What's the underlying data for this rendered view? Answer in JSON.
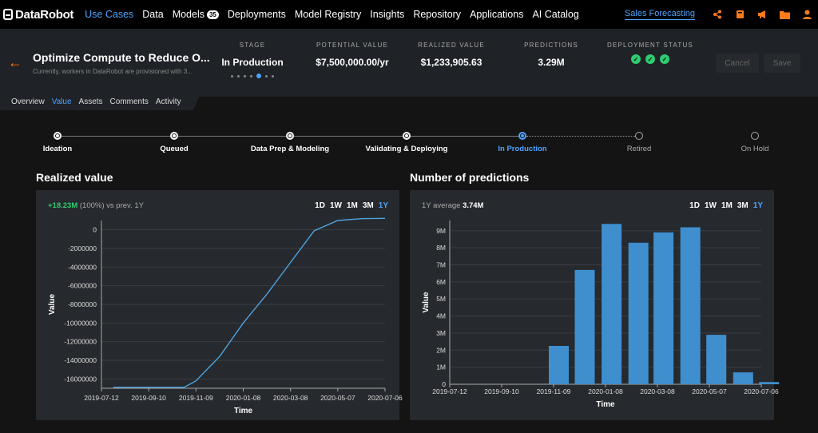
{
  "topbar": {
    "logo": "DataRobot",
    "nav": [
      "Use Cases",
      "Data",
      "Models",
      "Deployments",
      "Model Registry",
      "Insights",
      "Repository",
      "Applications",
      "AI Catalog"
    ],
    "models_badge": "35",
    "project": "Sales Forecasting",
    "icons": [
      "share-icon",
      "book-icon",
      "megaphone-icon",
      "folder-icon",
      "user-icon"
    ]
  },
  "header": {
    "title": "Optimize Compute to Reduce O...",
    "description": "Currently, workers in DataRobot are provisioned with 3...",
    "stage_label": "STAGE",
    "stage_value": "In Production",
    "potential_label": "POTENTIAL VALUE",
    "potential_value": "$7,500,000.00/yr",
    "realized_label": "REALIZED VALUE",
    "realized_value": "$1,233,905.63",
    "predictions_label": "PREDICTIONS",
    "predictions_value": "3.29M",
    "status_label": "DEPLOYMENT STATUS",
    "cancel": "Cancel",
    "save": "Save"
  },
  "tabs": [
    "Overview",
    "Value",
    "Assets",
    "Comments",
    "Activity"
  ],
  "stages": [
    "Ideation",
    "Queued",
    "Data Prep & Modeling",
    "Validating & Deploying",
    "In Production",
    "Retired",
    "On Hold"
  ],
  "realized_chart": {
    "title": "Realized value",
    "delta": "+18.23M",
    "delta_pct": "(100%)",
    "delta_suffix": "vs prev. 1Y",
    "ranges": [
      "1D",
      "1W",
      "1M",
      "3M",
      "1Y"
    ],
    "active_range": "1Y"
  },
  "predictions_chart": {
    "title": "Number of predictions",
    "avg_label": "1Y average",
    "avg_value": "3.74M",
    "ranges": [
      "1D",
      "1W",
      "1M",
      "3M",
      "1Y"
    ],
    "active_range": "1Y"
  },
  "chart_data": [
    {
      "type": "line",
      "xlabel": "Time",
      "ylabel": "Value",
      "xticks": [
        "2019-07-12",
        "2019-09-10",
        "2019-11-09",
        "2020-01-08",
        "2020-03-08",
        "2020-05-07",
        "2020-07-06"
      ],
      "yticks": [
        "0",
        "-2000000",
        "-4000000",
        "-6000000",
        "-8000000",
        "-10000000",
        "-12000000",
        "-14000000",
        "-16000000"
      ],
      "ylim": [
        -17000000,
        1000000
      ],
      "xlim": [
        "2019-07-12",
        "2020-07-06"
      ],
      "x": [
        "2019-07-27",
        "2019-09-10",
        "2019-10-25",
        "2019-11-09",
        "2019-12-09",
        "2020-01-08",
        "2020-02-07",
        "2020-03-08",
        "2020-04-07",
        "2020-05-07",
        "2020-06-06",
        "2020-07-06"
      ],
      "y": [
        -16900000,
        -16900000,
        -16900000,
        -16200000,
        -13600000,
        -10000000,
        -6900000,
        -3500000,
        -100000,
        1000000,
        1200000,
        1230000
      ]
    },
    {
      "type": "bar",
      "xlabel": "Time",
      "ylabel": "Value",
      "xticks": [
        "2019-07-12",
        "2019-09-10",
        "2019-11-09",
        "2020-01-08",
        "2020-03-08",
        "2020-05-07",
        "2020-07-06"
      ],
      "yticks": [
        "0",
        "1M",
        "2M",
        "3M",
        "4M",
        "5M",
        "6M",
        "7M",
        "8M",
        "9M"
      ],
      "ylim": [
        0,
        9600000
      ],
      "xlim": [
        "2019-07-12",
        "2020-07-06"
      ],
      "categories": [
        "2019-11",
        "2019-12",
        "2020-01",
        "2020-02",
        "2020-03",
        "2020-04",
        "2020-05",
        "2020-06",
        "2020-07"
      ],
      "values": [
        2250000,
        6700000,
        9400000,
        8300000,
        8900000,
        9200000,
        2900000,
        700000,
        130000
      ]
    }
  ]
}
